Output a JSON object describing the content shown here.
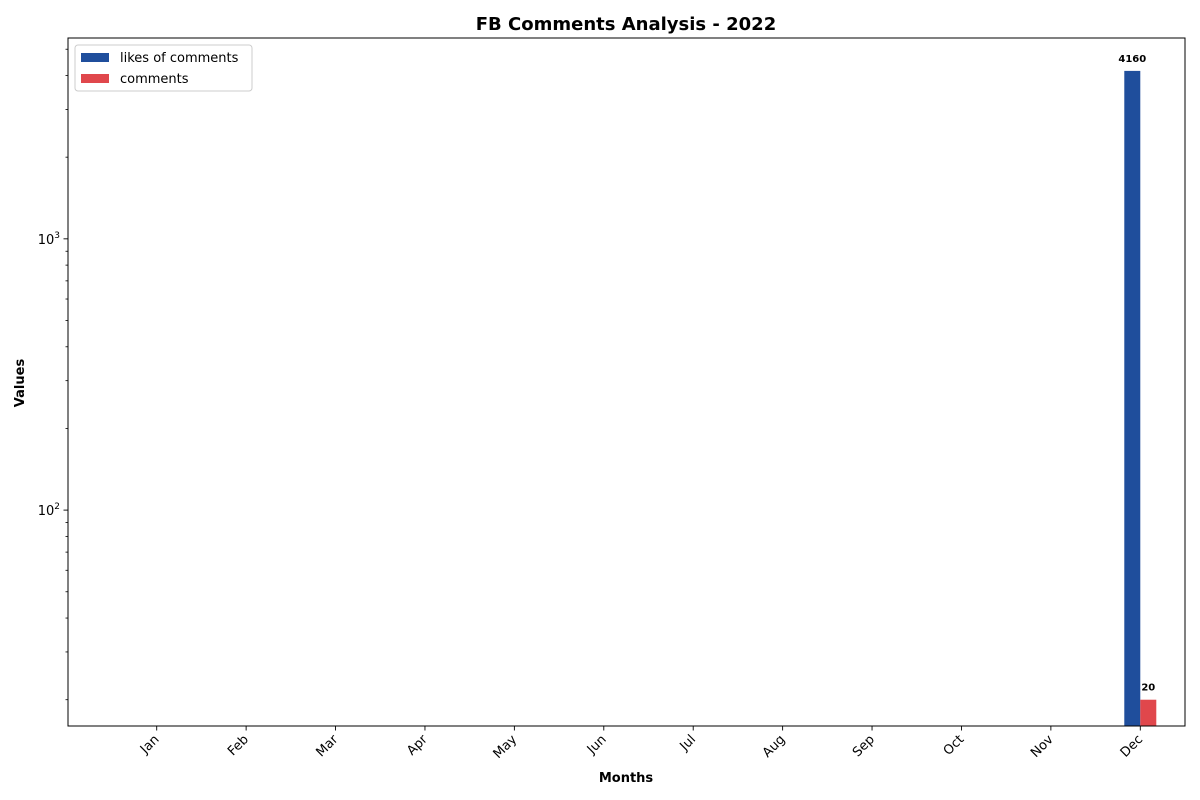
{
  "chart_data": {
    "type": "bar",
    "title": "FB Comments Analysis - 2022",
    "xlabel": "Months",
    "ylabel": "Values",
    "yscale": "log",
    "ylim": [
      16,
      5500
    ],
    "categories": [
      "Jan",
      "Feb",
      "Mar",
      "Apr",
      "May",
      "Jun",
      "Jul",
      "Aug",
      "Sep",
      "Oct",
      "Nov",
      "Dec"
    ],
    "series": [
      {
        "name": "likes of comments",
        "color": "#1f4e9c",
        "values": [
          0,
          0,
          0,
          0,
          0,
          0,
          0,
          0,
          0,
          0,
          0,
          4160
        ]
      },
      {
        "name": "comments",
        "color": "#e0474c",
        "values": [
          0,
          0,
          0,
          0,
          0,
          0,
          0,
          0,
          0,
          0,
          0,
          20
        ]
      }
    ],
    "data_labels": [
      {
        "series": 0,
        "category": "Dec",
        "text": "4160"
      },
      {
        "series": 1,
        "category": "Dec",
        "text": "20"
      }
    ],
    "y_ticks": [
      {
        "value": 100,
        "base": "10",
        "exp": "2"
      },
      {
        "value": 1000,
        "base": "10",
        "exp": "3"
      }
    ],
    "legend_position": "upper-left",
    "grid": false,
    "x_tick_rotation": 45
  }
}
